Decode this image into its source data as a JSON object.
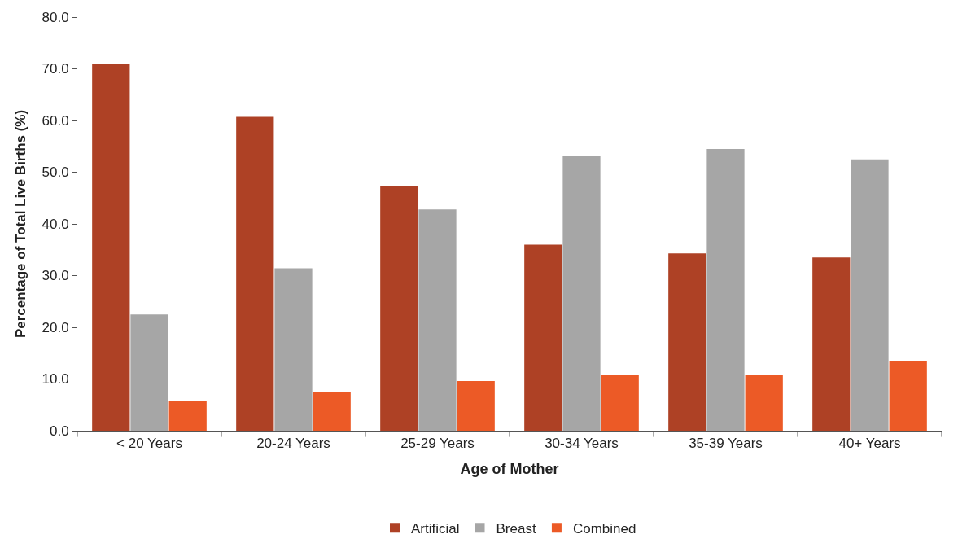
{
  "chart_data": {
    "type": "bar",
    "xlabel": "Age of Mother",
    "ylabel": "Percentage of Total Live Births (%)",
    "categories": [
      "< 20 Years",
      "20-24 Years",
      "25-29 Years",
      "30-34 Years",
      "35-39 Years",
      "40+ Years"
    ],
    "series": [
      {
        "name": "Artificial",
        "color": "#ae4125",
        "values": [
          71.0,
          60.7,
          47.3,
          36.0,
          34.3,
          33.5
        ]
      },
      {
        "name": "Breast",
        "color": "#a6a6a6",
        "values": [
          22.5,
          31.4,
          42.8,
          53.1,
          54.5,
          52.5
        ]
      },
      {
        "name": "Combined",
        "color": "#ec5a26",
        "values": [
          5.8,
          7.4,
          9.6,
          10.7,
          10.7,
          13.5
        ]
      }
    ],
    "ylim": [
      0,
      80
    ],
    "yticks": [
      {
        "value": 0,
        "label": "0.0"
      },
      {
        "value": 10,
        "label": "10.0"
      },
      {
        "value": 20,
        "label": "20.0"
      },
      {
        "value": 30,
        "label": "30.0"
      },
      {
        "value": 40,
        "label": "40.0"
      },
      {
        "value": 50,
        "label": "50.0"
      },
      {
        "value": 60,
        "label": "60.0"
      },
      {
        "value": 70,
        "label": "70.0"
      },
      {
        "value": 80,
        "label": "80.0"
      }
    ],
    "grid": false,
    "legend": "bottom"
  }
}
